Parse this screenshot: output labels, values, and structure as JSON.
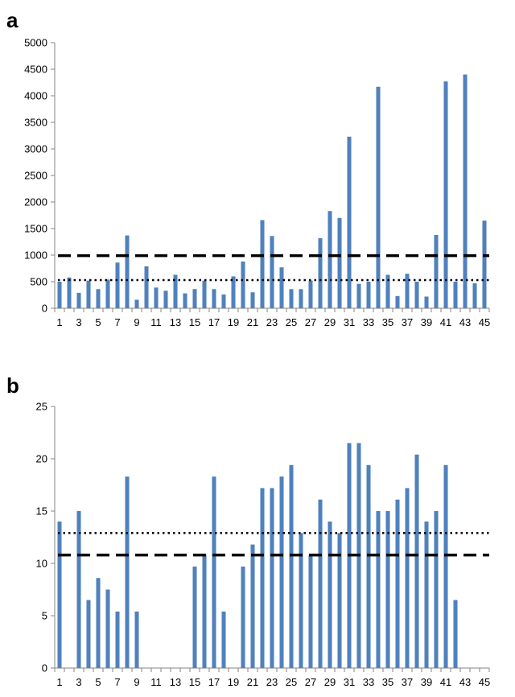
{
  "colors": {
    "bar": "#4F81BD",
    "axis": "#868686",
    "reference_line": "#000000"
  },
  "chart_data": [
    {
      "panel_label": "a",
      "type": "bar",
      "categories": [
        "1",
        "2",
        "3",
        "4",
        "5",
        "6",
        "7",
        "8",
        "9",
        "10",
        "11",
        "12",
        "13",
        "14",
        "15",
        "16",
        "17",
        "18",
        "19",
        "20",
        "21",
        "22",
        "23",
        "24",
        "25",
        "26",
        "27",
        "28",
        "29",
        "30",
        "31",
        "32",
        "33",
        "34",
        "35",
        "36",
        "37",
        "38",
        "39",
        "40",
        "41",
        "42",
        "43",
        "44",
        "45"
      ],
      "x_tick_labels": [
        "1",
        "3",
        "5",
        "7",
        "9",
        "11",
        "13",
        "15",
        "17",
        "19",
        "21",
        "23",
        "25",
        "27",
        "29",
        "31",
        "33",
        "35",
        "37",
        "39",
        "41",
        "43",
        "45"
      ],
      "y_tick_labels": [
        "0",
        "500",
        "1000",
        "1500",
        "2000",
        "2500",
        "3000",
        "3500",
        "4000",
        "4500",
        "5000"
      ],
      "values": [
        500,
        580,
        290,
        520,
        360,
        540,
        860,
        1370,
        160,
        790,
        390,
        330,
        630,
        280,
        360,
        520,
        360,
        260,
        600,
        880,
        300,
        1660,
        1360,
        770,
        360,
        360,
        520,
        1320,
        1830,
        1700,
        3230,
        460,
        500,
        4170,
        630,
        230,
        650,
        500,
        220,
        1380,
        4270,
        500,
        4400,
        470,
        1650
      ],
      "ylim": [
        0,
        5000
      ],
      "reference_lines": [
        {
          "style": "dashed",
          "value": 990
        },
        {
          "style": "dotted",
          "value": 530
        }
      ],
      "title": "",
      "xlabel": "",
      "ylabel": "",
      "grid": false,
      "legend": "none"
    },
    {
      "panel_label": "b",
      "type": "bar",
      "categories": [
        "1",
        "2",
        "3",
        "4",
        "5",
        "6",
        "7",
        "8",
        "9",
        "10",
        "11",
        "12",
        "13",
        "14",
        "15",
        "16",
        "17",
        "18",
        "19",
        "20",
        "21",
        "22",
        "23",
        "24",
        "25",
        "26",
        "27",
        "28",
        "29",
        "30",
        "31",
        "32",
        "33",
        "34",
        "35",
        "36",
        "37",
        "38",
        "39",
        "40",
        "41",
        "42",
        "43",
        "44",
        "45"
      ],
      "x_tick_labels": [
        "1",
        "3",
        "5",
        "7",
        "9",
        "11",
        "13",
        "15",
        "17",
        "19",
        "21",
        "23",
        "25",
        "27",
        "29",
        "31",
        "33",
        "35",
        "37",
        "39",
        "41",
        "43",
        "45"
      ],
      "y_tick_labels": [
        "0",
        "5",
        "10",
        "15",
        "20",
        "25"
      ],
      "values": [
        14.0,
        0,
        15.0,
        6.5,
        8.6,
        7.5,
        5.4,
        18.3,
        5.4,
        0,
        0,
        0,
        0,
        0,
        9.7,
        10.8,
        18.3,
        5.4,
        0,
        9.7,
        11.8,
        17.2,
        17.2,
        18.3,
        19.4,
        12.9,
        10.8,
        16.1,
        14.0,
        12.9,
        21.5,
        21.5,
        19.4,
        15.0,
        15.0,
        16.1,
        17.2,
        20.4,
        14.0,
        15.0,
        19.4,
        6.5,
        0,
        0,
        0
      ],
      "ylim": [
        0,
        25
      ],
      "reference_lines": [
        {
          "style": "dotted",
          "value": 12.9
        },
        {
          "style": "dashed",
          "value": 10.8
        }
      ],
      "title": "",
      "xlabel": "",
      "ylabel": "",
      "grid": false,
      "legend": "none"
    }
  ]
}
